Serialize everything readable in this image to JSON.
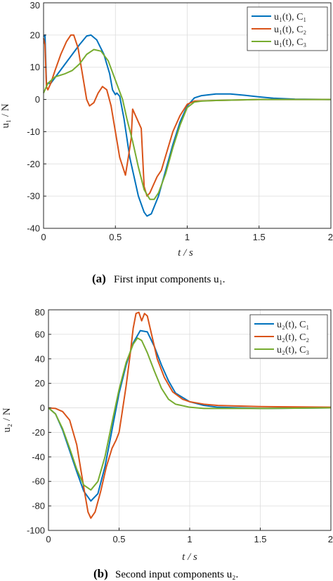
{
  "chart_data": [
    {
      "type": "line",
      "caption_label": "(a)",
      "caption": "First input components u₁.",
      "xlabel": "t / s",
      "ylabel": "u₁ / N",
      "xlim": [
        0,
        2
      ],
      "ylim": [
        -40,
        30
      ],
      "xticks": [
        0,
        0.5,
        1,
        1.5,
        2
      ],
      "xtick_labels": [
        "0",
        "0.5",
        "1",
        "1.5",
        "2"
      ],
      "yticks": [
        -40,
        -30,
        -20,
        -10,
        0,
        10,
        20,
        30
      ],
      "ytick_labels": [
        "-40",
        "-30",
        "-20",
        "-10",
        "0",
        "10",
        "20",
        "30"
      ],
      "grid": true,
      "legend_position": "top-right",
      "series": [
        {
          "name": "u₁(t), C₁",
          "color": "#0072BD",
          "points": [
            [
              0,
              19.5
            ],
            [
              0.01,
              20
            ],
            [
              0.02,
              5
            ],
            [
              0.05,
              5
            ],
            [
              0.1,
              8
            ],
            [
              0.15,
              11
            ],
            [
              0.2,
              14
            ],
            [
              0.25,
              17
            ],
            [
              0.3,
              19.7
            ],
            [
              0.33,
              20
            ],
            [
              0.37,
              18.5
            ],
            [
              0.42,
              14
            ],
            [
              0.46,
              8
            ],
            [
              0.48,
              3
            ],
            [
              0.5,
              1.5
            ],
            [
              0.51,
              2
            ],
            [
              0.53,
              1
            ],
            [
              0.56,
              -6
            ],
            [
              0.6,
              -18
            ],
            [
              0.63,
              -24
            ],
            [
              0.66,
              -30
            ],
            [
              0.7,
              -35
            ],
            [
              0.72,
              -36.2
            ],
            [
              0.75,
              -35.5
            ],
            [
              0.8,
              -30
            ],
            [
              0.85,
              -22
            ],
            [
              0.9,
              -14
            ],
            [
              0.95,
              -7
            ],
            [
              1.0,
              -2
            ],
            [
              1.05,
              0.5
            ],
            [
              1.1,
              1.2
            ],
            [
              1.2,
              1.7
            ],
            [
              1.3,
              1.7
            ],
            [
              1.4,
              1.3
            ],
            [
              1.5,
              0.8
            ],
            [
              1.6,
              0.4
            ],
            [
              1.75,
              0.1
            ],
            [
              2.0,
              0
            ]
          ]
        },
        {
          "name": "u₁(t), C₂",
          "color": "#D95319",
          "points": [
            [
              0,
              19
            ],
            [
              0.01,
              17
            ],
            [
              0.02,
              4
            ],
            [
              0.03,
              3
            ],
            [
              0.05,
              5
            ],
            [
              0.08,
              9
            ],
            [
              0.12,
              14
            ],
            [
              0.16,
              18
            ],
            [
              0.19,
              20
            ],
            [
              0.21,
              20
            ],
            [
              0.24,
              16
            ],
            [
              0.27,
              8
            ],
            [
              0.3,
              0
            ],
            [
              0.32,
              -2
            ],
            [
              0.35,
              -1
            ],
            [
              0.38,
              2
            ],
            [
              0.41,
              4
            ],
            [
              0.44,
              3
            ],
            [
              0.47,
              -2
            ],
            [
              0.5,
              -10
            ],
            [
              0.53,
              -18
            ],
            [
              0.57,
              -23.5
            ],
            [
              0.59,
              -18
            ],
            [
              0.61,
              -12
            ],
            [
              0.62,
              -3
            ],
            [
              0.64,
              -5
            ],
            [
              0.66,
              -7
            ],
            [
              0.68,
              -9
            ],
            [
              0.7,
              -27
            ],
            [
              0.72,
              -30
            ],
            [
              0.74,
              -29
            ],
            [
              0.76,
              -27
            ],
            [
              0.79,
              -24
            ],
            [
              0.82,
              -22
            ],
            [
              0.86,
              -16
            ],
            [
              0.9,
              -10
            ],
            [
              0.95,
              -5
            ],
            [
              1.0,
              -1.5
            ],
            [
              1.05,
              -0.5
            ],
            [
              1.2,
              -0.3
            ],
            [
              1.5,
              0
            ],
            [
              2.0,
              0
            ]
          ]
        },
        {
          "name": "u₁(t), C₃",
          "color": "#77AC30",
          "points": [
            [
              0,
              2
            ],
            [
              0.03,
              5
            ],
            [
              0.08,
              7
            ],
            [
              0.15,
              8
            ],
            [
              0.2,
              9
            ],
            [
              0.25,
              11
            ],
            [
              0.3,
              14
            ],
            [
              0.35,
              15.5
            ],
            [
              0.4,
              15
            ],
            [
              0.45,
              12
            ],
            [
              0.5,
              6
            ],
            [
              0.55,
              0
            ],
            [
              0.58,
              -6
            ],
            [
              0.62,
              -13
            ],
            [
              0.66,
              -21
            ],
            [
              0.7,
              -28
            ],
            [
              0.74,
              -31
            ],
            [
              0.77,
              -31
            ],
            [
              0.8,
              -29
            ],
            [
              0.85,
              -23
            ],
            [
              0.9,
              -15
            ],
            [
              0.95,
              -8
            ],
            [
              1.0,
              -2.5
            ],
            [
              1.05,
              -0.8
            ],
            [
              1.1,
              -0.5
            ],
            [
              1.2,
              -0.3
            ],
            [
              1.5,
              0
            ],
            [
              2.0,
              0
            ]
          ]
        }
      ]
    },
    {
      "type": "line",
      "caption_label": "(b)",
      "caption": "Second input components u₂.",
      "xlabel": "t / s",
      "ylabel": "u₂ / N",
      "xlim": [
        0,
        2
      ],
      "ylim": [
        -100,
        80
      ],
      "xticks": [
        0,
        0.5,
        1,
        1.5,
        2
      ],
      "xtick_labels": [
        "0",
        "0.5",
        "1",
        "1.5",
        "2"
      ],
      "yticks": [
        -100,
        -80,
        -60,
        -40,
        -20,
        0,
        20,
        40,
        60,
        80
      ],
      "ytick_labels": [
        "-100",
        "-80",
        "-60",
        "-40",
        "-20",
        "0",
        "20",
        "40",
        "60",
        "80"
      ],
      "grid": true,
      "legend_position": "top-right",
      "series": [
        {
          "name": "u₂(t), C₁",
          "color": "#0072BD",
          "points": [
            [
              0,
              0
            ],
            [
              0.05,
              -5
            ],
            [
              0.1,
              -18
            ],
            [
              0.15,
              -35
            ],
            [
              0.2,
              -52
            ],
            [
              0.25,
              -68
            ],
            [
              0.3,
              -76
            ],
            [
              0.35,
              -70
            ],
            [
              0.4,
              -48
            ],
            [
              0.45,
              -18
            ],
            [
              0.5,
              12
            ],
            [
              0.55,
              35
            ],
            [
              0.6,
              53
            ],
            [
              0.65,
              63
            ],
            [
              0.7,
              62
            ],
            [
              0.75,
              50
            ],
            [
              0.8,
              35
            ],
            [
              0.85,
              22
            ],
            [
              0.9,
              12
            ],
            [
              1.0,
              5
            ],
            [
              1.1,
              2
            ],
            [
              1.2,
              0.5
            ],
            [
              1.5,
              -0.5
            ],
            [
              2.0,
              0
            ]
          ]
        },
        {
          "name": "u₂(t), C₂",
          "color": "#D95319",
          "points": [
            [
              0,
              0
            ],
            [
              0.05,
              -0.5
            ],
            [
              0.1,
              -3
            ],
            [
              0.15,
              -10
            ],
            [
              0.2,
              -30
            ],
            [
              0.25,
              -65
            ],
            [
              0.28,
              -85
            ],
            [
              0.3,
              -90
            ],
            [
              0.33,
              -85
            ],
            [
              0.37,
              -68
            ],
            [
              0.41,
              -48
            ],
            [
              0.45,
              -33
            ],
            [
              0.48,
              -26
            ],
            [
              0.5,
              -20
            ],
            [
              0.52,
              -5
            ],
            [
              0.55,
              18
            ],
            [
              0.58,
              45
            ],
            [
              0.6,
              65
            ],
            [
              0.62,
              77
            ],
            [
              0.64,
              78
            ],
            [
              0.66,
              71
            ],
            [
              0.68,
              77
            ],
            [
              0.7,
              75
            ],
            [
              0.73,
              60
            ],
            [
              0.77,
              40
            ],
            [
              0.82,
              25
            ],
            [
              0.88,
              13
            ],
            [
              0.95,
              7
            ],
            [
              1.0,
              5
            ],
            [
              1.1,
              3
            ],
            [
              1.2,
              2
            ],
            [
              1.5,
              1
            ],
            [
              2.0,
              0.5
            ]
          ]
        },
        {
          "name": "u₂(t), C₃",
          "color": "#77AC30",
          "points": [
            [
              0,
              0
            ],
            [
              0.05,
              -5
            ],
            [
              0.1,
              -17
            ],
            [
              0.15,
              -33
            ],
            [
              0.2,
              -50
            ],
            [
              0.25,
              -63
            ],
            [
              0.3,
              -67
            ],
            [
              0.35,
              -60
            ],
            [
              0.4,
              -40
            ],
            [
              0.45,
              -12
            ],
            [
              0.5,
              15
            ],
            [
              0.55,
              37
            ],
            [
              0.6,
              52
            ],
            [
              0.63,
              57
            ],
            [
              0.66,
              55
            ],
            [
              0.7,
              45
            ],
            [
              0.75,
              30
            ],
            [
              0.8,
              16
            ],
            [
              0.85,
              7
            ],
            [
              0.9,
              3
            ],
            [
              1.0,
              0.5
            ],
            [
              1.1,
              -0.5
            ],
            [
              1.5,
              -0.5
            ],
            [
              2.0,
              0
            ]
          ]
        }
      ]
    }
  ]
}
